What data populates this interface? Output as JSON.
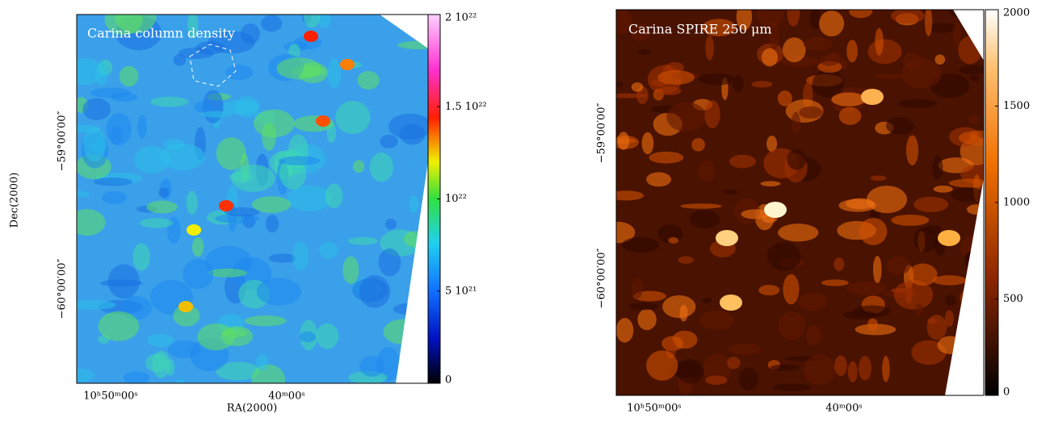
{
  "chart_data": [
    {
      "type": "image",
      "title": "Carina column density",
      "xlabel": "RA(2000)",
      "ylabel": "Dec(2000)",
      "x_tick_labels": [
        "10ʰ50ᵐ00ˢ",
        "40ᵐ00ˢ"
      ],
      "y_tick_labels": [
        "−59°00′00″",
        "−60°00′00″"
      ],
      "colormap": "rainbow",
      "clim": [
        0,
        2e+22
      ],
      "cticks": [
        0,
        {
          "value": 5e+21,
          "label": "5 10²¹"
        },
        {
          "value": 1e+22,
          "label": "10²²"
        },
        {
          "value": 1.5e+22,
          "label": "1.5 10²²"
        },
        {
          "value": 2e+22,
          "label": "2 10²²"
        }
      ]
    },
    {
      "type": "image",
      "title": "Carina SPIRE 250 μm",
      "x_tick_labels": [
        "10ʰ50ᵐ00ˢ",
        "40ᵐ00ˢ"
      ],
      "y_tick_labels": [
        "−59°00′00″",
        "−60°00′00″"
      ],
      "colormap": "heat",
      "clim": [
        0,
        2000
      ],
      "cticks": [
        0,
        500,
        1000,
        1500,
        2000
      ]
    }
  ]
}
